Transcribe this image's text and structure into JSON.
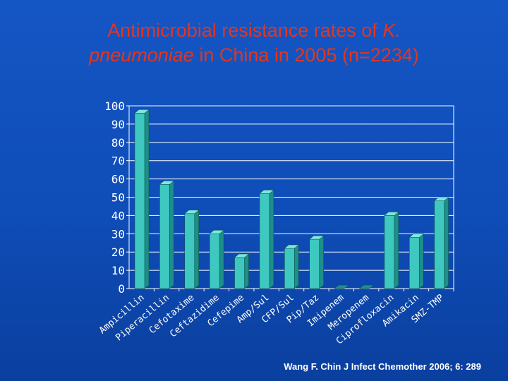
{
  "slide": {
    "title_line1_pre": "Antimicrobial resistance rates of ",
    "title_line1_italic": "K.",
    "title_line2_italic": "pneumoniae",
    "title_line2_post": " in China in 2005 (n=2234)",
    "citation": "Wang F. Chin J Infect Chemother 2006; 6: 289"
  },
  "colors": {
    "bar_front": "#3ec8c0",
    "bar_top": "#7fe6df",
    "bar_side": "#1e8e88",
    "title": "#e3351f",
    "text": "#ffffff"
  },
  "chart_data": {
    "type": "bar",
    "title": "",
    "xlabel": "",
    "ylabel": "",
    "ylim": [
      0,
      100
    ],
    "yticks": [
      0,
      10,
      20,
      30,
      40,
      50,
      60,
      70,
      80,
      90,
      100
    ],
    "grid": true,
    "style": "3d",
    "categories": [
      "Ampicillin",
      "Piperacillin",
      "Cefotaxime",
      "Ceftazidime",
      "Cefepime",
      "Amp/Sul",
      "CFP/Sul",
      "Pip/Taz",
      "Imipenem",
      "Meropenem",
      "Ciprofloxacin",
      "Amikacin",
      "SMZ-TMP"
    ],
    "values": [
      96,
      57,
      41,
      30,
      17,
      52,
      22,
      27,
      0,
      0,
      40,
      28,
      48
    ]
  }
}
